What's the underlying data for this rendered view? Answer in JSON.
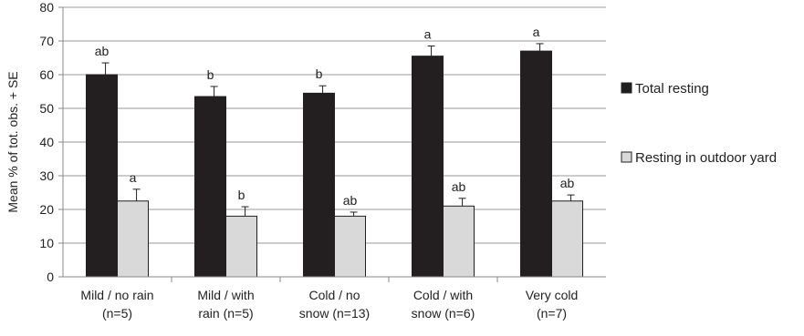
{
  "chart_data": {
    "type": "bar",
    "ylabel": "Mean % of tot. obs. + SE",
    "ylim": [
      0,
      80
    ],
    "yticks": [
      0,
      10,
      20,
      30,
      40,
      50,
      60,
      70,
      80
    ],
    "grid": true,
    "legend_position": "right",
    "categories": [
      [
        "Mild / no rain",
        "(n=5)"
      ],
      [
        "Mild / with",
        "rain (n=5)"
      ],
      [
        "Cold / no",
        "snow (n=13)"
      ],
      [
        "Cold / with",
        "snow (n=6)"
      ],
      [
        "Very cold",
        "(n=7)"
      ]
    ],
    "series": [
      {
        "name": "Total resting",
        "color": "#231f20",
        "values": [
          60,
          53.5,
          54.5,
          65.5,
          67
        ],
        "se": [
          3.5,
          3,
          2.2,
          3,
          2.2
        ],
        "significance": [
          "ab",
          "b",
          "b",
          "a",
          "a"
        ]
      },
      {
        "name": "Resting in outdoor yard",
        "color": "#d9d9d9",
        "values": [
          22.5,
          18,
          18,
          21,
          22.5
        ],
        "se": [
          3.5,
          2.8,
          1.2,
          2.3,
          1.8
        ],
        "significance": [
          "a",
          "b",
          "ab",
          "ab",
          "ab"
        ]
      }
    ]
  }
}
